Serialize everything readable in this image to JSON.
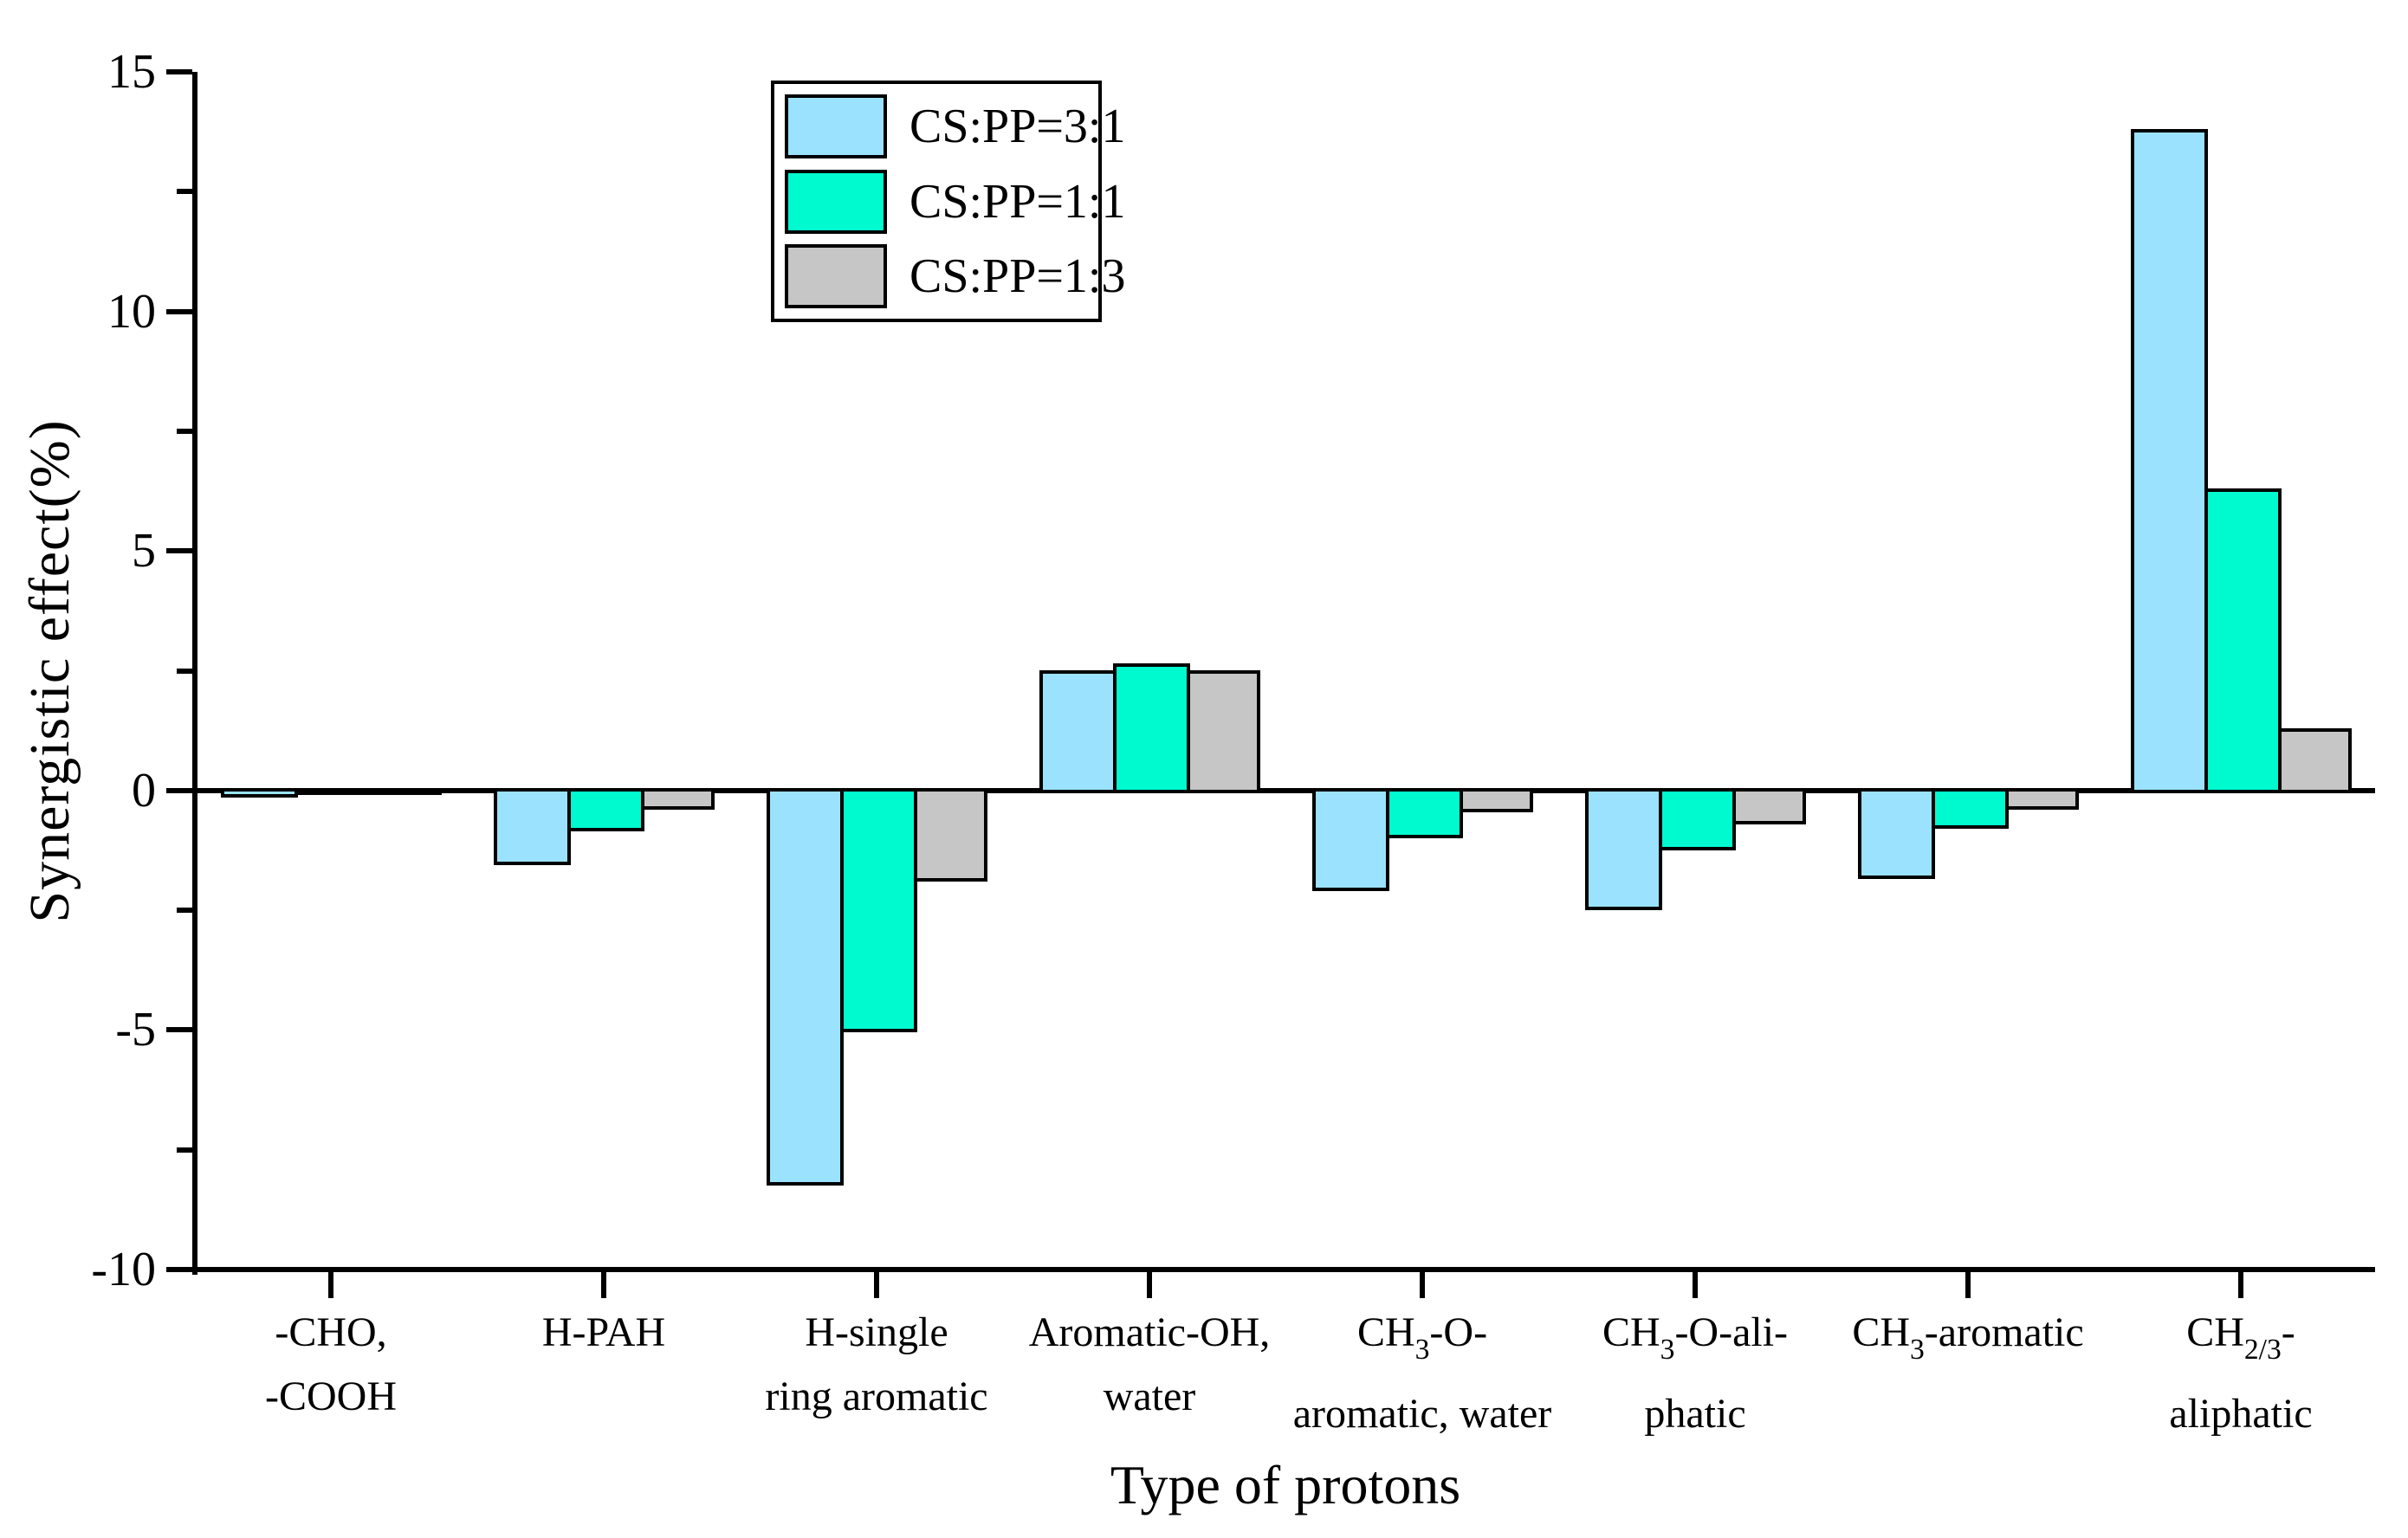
{
  "chart_data": {
    "type": "bar",
    "title": "",
    "xlabel": "Type of protons",
    "ylabel": "Synergistic effect(%)",
    "ylim": [
      -10,
      15
    ],
    "ytick_major": [
      15,
      10,
      5,
      0,
      -5,
      -10
    ],
    "ytick_minor": [
      12.5,
      7.5,
      2.5,
      -2.5,
      -7.5
    ],
    "grid": false,
    "legend_position": "top-left-inside",
    "categories": [
      "-CHO, -COOH",
      "H-PAH",
      "H-single ring aromatic",
      "Aromatic-OH, water",
      "CH3-O-aromatic, water",
      "CH3-O-aliphatic",
      "CH3-aromatic",
      "CH2/3-aliphatic"
    ],
    "category_label_lines": [
      [
        [
          {
            "t": "-CHO,"
          }
        ],
        [
          {
            "t": "-COOH"
          }
        ]
      ],
      [
        [
          {
            "t": "H-PAH"
          }
        ]
      ],
      [
        [
          {
            "t": "H-single"
          }
        ],
        [
          {
            "t": "ring aromatic"
          }
        ]
      ],
      [
        [
          {
            "t": "Aromatic-OH,"
          }
        ],
        [
          {
            "t": "water"
          }
        ]
      ],
      [
        [
          {
            "t": "CH"
          },
          {
            "t": "3",
            "sub": true
          },
          {
            "t": "-O-"
          }
        ],
        [
          {
            "t": "aromatic, water"
          }
        ]
      ],
      [
        [
          {
            "t": "CH"
          },
          {
            "t": "3",
            "sub": true
          },
          {
            "t": "-O-ali-"
          }
        ],
        [
          {
            "t": "phatic"
          }
        ]
      ],
      [
        [
          {
            "t": "CH"
          },
          {
            "t": "3",
            "sub": true
          },
          {
            "t": "-aromatic"
          }
        ]
      ],
      [
        [
          {
            "t": "CH"
          },
          {
            "t": "2/3",
            "sub": true
          },
          {
            "t": "-"
          }
        ],
        [
          {
            "t": "aliphatic"
          }
        ]
      ]
    ],
    "series": [
      {
        "name": "CS:PP=3:1",
        "color": "#9ae2fd",
        "values": [
          -0.1,
          -1.5,
          -8.2,
          2.45,
          -2.05,
          -2.45,
          -1.8,
          13.75
        ]
      },
      {
        "name": "CS:PP=1:1",
        "color": "#00facf",
        "values": [
          0,
          -0.8,
          -5.0,
          2.6,
          -0.95,
          -1.2,
          -0.75,
          6.25
        ]
      },
      {
        "name": "CS:PP=1:3",
        "color": "#c6c6c6",
        "values": [
          0,
          -0.35,
          -1.85,
          2.45,
          -0.4,
          -0.65,
          -0.35,
          1.25
        ]
      }
    ],
    "axis_color": "#000000",
    "background_color": "#ffffff"
  }
}
